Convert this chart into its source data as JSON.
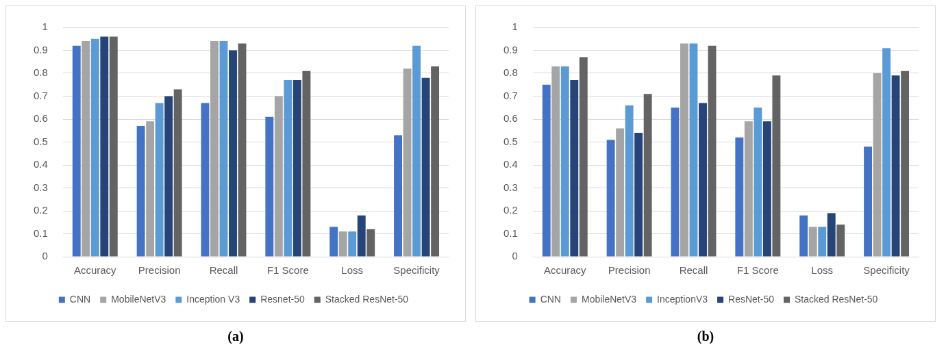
{
  "chart_data": [
    {
      "type": "bar",
      "categories": [
        "Accuracy",
        "Precision",
        "Recall",
        "F1 Score",
        "Loss",
        "Specificity"
      ],
      "series": [
        {
          "name": "CNN",
          "color": "#4472c4",
          "values": [
            0.92,
            0.57,
            0.67,
            0.61,
            0.13,
            0.53
          ]
        },
        {
          "name": "MobileNetV3",
          "color": "#a5a5a5",
          "values": [
            0.94,
            0.59,
            0.94,
            0.7,
            0.11,
            0.82
          ]
        },
        {
          "name": "Inception V3",
          "color": "#5b9bd5",
          "values": [
            0.95,
            0.67,
            0.94,
            0.77,
            0.11,
            0.92
          ]
        },
        {
          "name": "Resnet-50",
          "color": "#264478",
          "values": [
            0.96,
            0.7,
            0.9,
            0.77,
            0.18,
            0.78
          ]
        },
        {
          "name": "Stacked ResNet-50",
          "color": "#636363",
          "values": [
            0.96,
            0.73,
            0.93,
            0.81,
            0.12,
            0.83
          ]
        }
      ],
      "ylim": [
        0,
        1
      ],
      "yticks": [
        0,
        0.1,
        0.2,
        0.3,
        0.4,
        0.5,
        0.6,
        0.7,
        0.8,
        0.9,
        1
      ],
      "grid": "y",
      "legend": "bottom",
      "annotations": [
        "(a)"
      ]
    },
    {
      "type": "bar",
      "categories": [
        "Accuracy",
        "Precision",
        "Recall",
        "F1 Score",
        "Loss",
        "Specificity"
      ],
      "series": [
        {
          "name": "CNN",
          "color": "#4472c4",
          "values": [
            0.75,
            0.51,
            0.65,
            0.52,
            0.18,
            0.48
          ]
        },
        {
          "name": "MobileNetV3",
          "color": "#a5a5a5",
          "values": [
            0.83,
            0.56,
            0.93,
            0.59,
            0.13,
            0.8
          ]
        },
        {
          "name": "InceptionV3",
          "color": "#5b9bd5",
          "values": [
            0.83,
            0.66,
            0.93,
            0.65,
            0.13,
            0.91
          ]
        },
        {
          "name": "ResNet-50",
          "color": "#264478",
          "values": [
            0.77,
            0.54,
            0.67,
            0.59,
            0.19,
            0.79
          ]
        },
        {
          "name": "Stacked ResNet-50",
          "color": "#636363",
          "values": [
            0.87,
            0.71,
            0.92,
            0.79,
            0.14,
            0.81
          ]
        }
      ],
      "ylim": [
        0,
        1
      ],
      "yticks": [
        0,
        0.1,
        0.2,
        0.3,
        0.4,
        0.5,
        0.6,
        0.7,
        0.8,
        0.9,
        1
      ],
      "grid": "y",
      "legend": "bottom",
      "annotations": [
        "(b)"
      ]
    }
  ]
}
